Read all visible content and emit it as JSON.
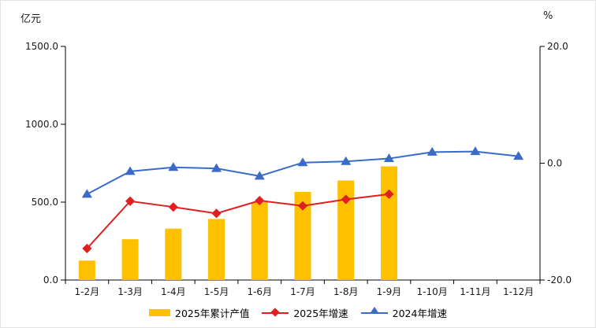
{
  "chart_data": {
    "type": "combo",
    "title": "",
    "categories": [
      "1-2月",
      "1-3月",
      "1-4月",
      "1-5月",
      "1-6月",
      "1-7月",
      "1-8月",
      "1-9月",
      "1-10月",
      "1-11月",
      "1-12月"
    ],
    "series": [
      {
        "name": "2025年累计产值",
        "type": "bar",
        "axis": "left",
        "color": "#FFC000",
        "values": [
          125,
          262,
          330,
          392,
          500,
          566,
          639,
          730,
          null,
          null,
          null
        ]
      },
      {
        "name": "2025年增速",
        "type": "line",
        "marker": "diamond",
        "axis": "right",
        "color": "#E02020",
        "values": [
          -14.6,
          -6.5,
          -7.5,
          -8.6,
          -6.4,
          -7.3,
          -6.2,
          -5.3,
          null,
          null,
          null
        ]
      },
      {
        "name": "2024年增速",
        "type": "line",
        "marker": "triangle",
        "axis": "right",
        "color": "#3A6BC8",
        "values": [
          -5.3,
          -1.4,
          -0.7,
          -0.9,
          -2.2,
          0.1,
          0.3,
          0.8,
          1.9,
          2.0,
          1.2
        ]
      }
    ],
    "left_axis": {
      "unit": "亿元",
      "range": [
        0,
        1500
      ],
      "ticks": [
        "0.0",
        "500.0",
        "1000.0",
        "1500.0"
      ]
    },
    "right_axis": {
      "unit": "%",
      "range": [
        -20,
        20
      ],
      "ticks": [
        "-20.0",
        "0.0",
        "20.0"
      ]
    },
    "grid": false,
    "legend_position": "bottom"
  }
}
